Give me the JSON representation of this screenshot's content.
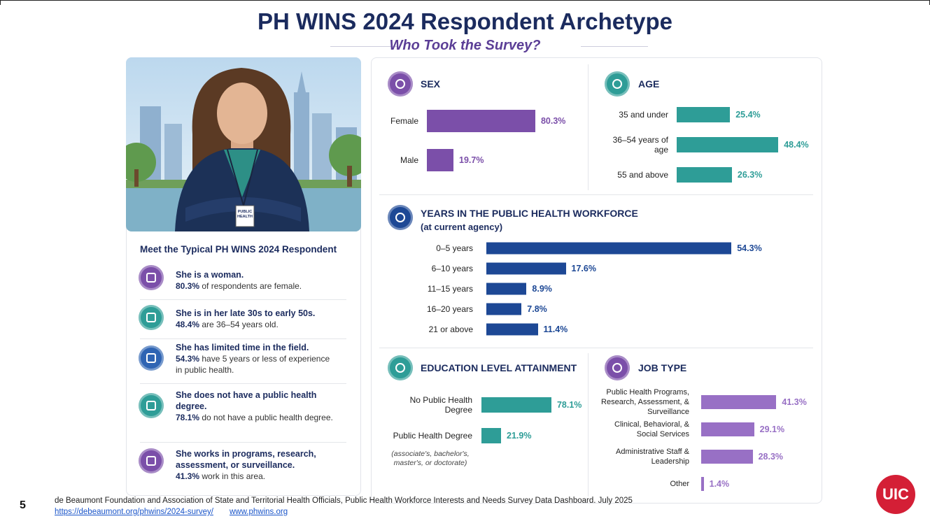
{
  "title": "PH WINS 2024 Respondent Archetype",
  "subtitle": "Who Took the Survey?",
  "badge": "PUBLIC HEALTH",
  "profile": {
    "heading": "Meet the Typical PH WINS 2024 Respondent",
    "items": [
      {
        "title": "She is a woman.",
        "stat": "80.3%",
        "text": "of respondents are female."
      },
      {
        "title": "She is in her late 30s to early 50s.",
        "stat": "48.4%",
        "text": "are 36–54 years old."
      },
      {
        "title": "She has limited time in the field.",
        "stat": "54.3%",
        "text": "have 5 years or less of experience in public health."
      },
      {
        "title": "She does not have a public health degree.",
        "stat": "78.1%",
        "text": "do not have a public health degree."
      },
      {
        "title": "She works in programs, research, assessment, or surveillance.",
        "stat": "41.3%",
        "text": "work in this area."
      }
    ]
  },
  "chart_data": [
    {
      "type": "bar",
      "title": "SEX",
      "categories": [
        "Female",
        "Male"
      ],
      "values": [
        80.3,
        19.7
      ],
      "value_labels": [
        "80.3%",
        "19.7%"
      ],
      "color": "#7b4fa9"
    },
    {
      "type": "bar",
      "title": "AGE",
      "categories": [
        "35 and under",
        "36–54 years of age",
        "55 and above"
      ],
      "values": [
        25.4,
        48.4,
        26.3
      ],
      "value_labels": [
        "25.4%",
        "48.4%",
        "26.3%"
      ],
      "color": "#2e9d97"
    },
    {
      "type": "bar",
      "title": "YEARS IN THE PUBLIC HEALTH WORKFORCE",
      "subtitle": "(at current agency)",
      "categories": [
        "0–5 years",
        "6–10 years",
        "11–15 years",
        "16–20 years",
        "21 or above"
      ],
      "values": [
        54.3,
        17.6,
        8.9,
        7.8,
        11.4
      ],
      "value_labels": [
        "54.3%",
        "17.6%",
        "8.9%",
        "7.8%",
        "11.4%"
      ],
      "color": "#1d4895"
    },
    {
      "type": "bar",
      "title": "EDUCATION LEVEL ATTAINMENT",
      "note": "(associate's, bachelor's, master's, or doctorate)",
      "categories": [
        "No Public Health Degree",
        "Public Health Degree"
      ],
      "values": [
        78.1,
        21.9
      ],
      "value_labels": [
        "78.1%",
        "21.9%"
      ],
      "color": "#2e9d97"
    },
    {
      "type": "bar",
      "title": "JOB TYPE",
      "categories": [
        "Public Health Programs, Research, Assessment, & Surveillance",
        "Clinical, Behavioral, & Social Services",
        "Administrative Staff & Leadership",
        "Other"
      ],
      "values": [
        41.3,
        29.1,
        28.3,
        1.4
      ],
      "value_labels": [
        "41.3%",
        "29.1%",
        "28.3%",
        "1.4%"
      ],
      "color": "#9870c5"
    }
  ],
  "footer": {
    "page": "5",
    "citation": "de Beaumont Foundation and Association of State and Territorial Health Officials, Public Health Workforce Interests and Needs Survey Data Dashboard. July 2025",
    "links": [
      "https://debeaumont.org/phwins/2024-survey/",
      "www.phwins.org"
    ]
  },
  "logo": "UIC"
}
